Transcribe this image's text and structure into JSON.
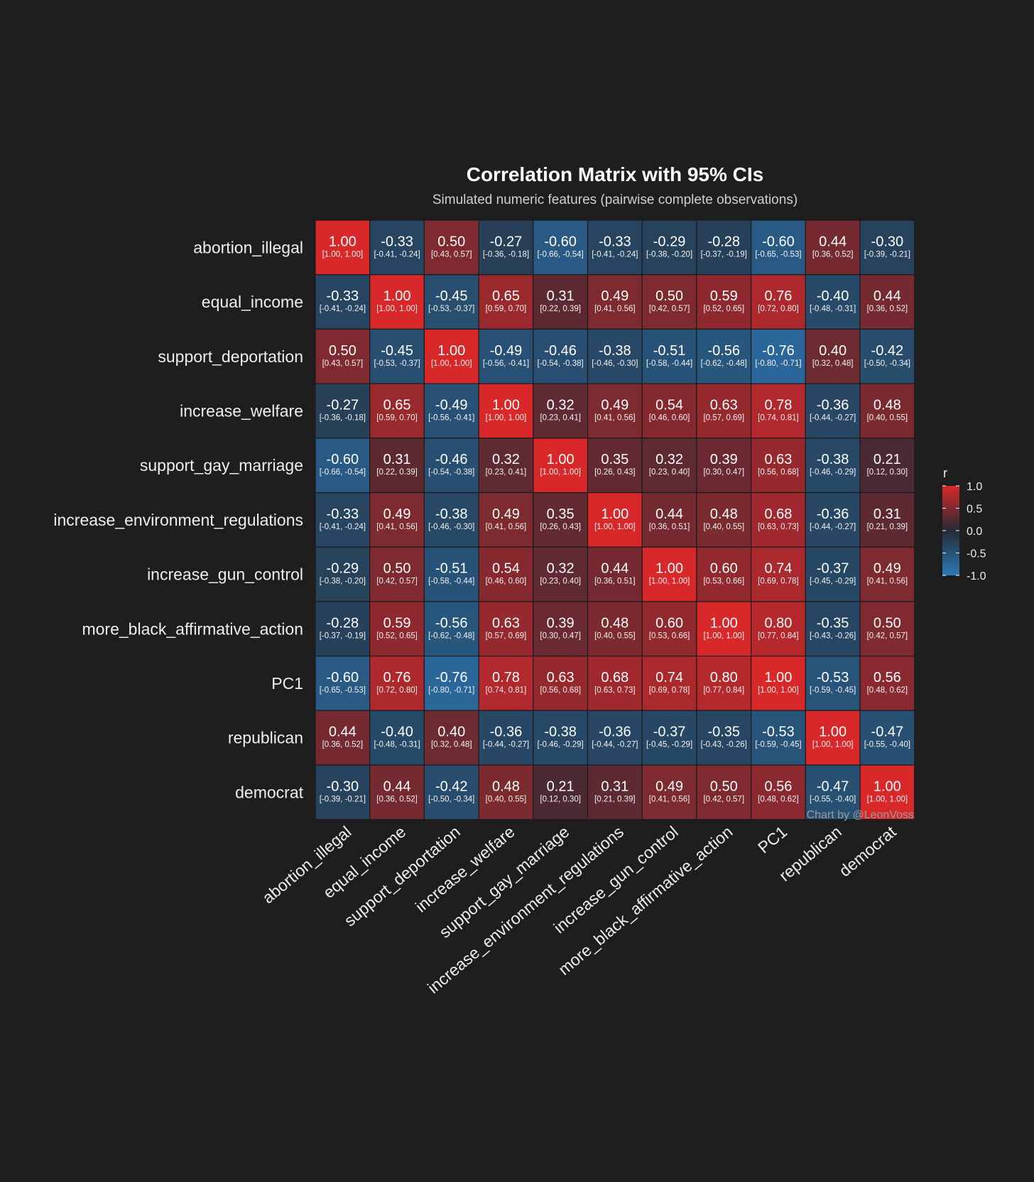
{
  "chart_data": {
    "type": "heatmap",
    "title": "Correlation Matrix with 95% CIs",
    "subtitle": "Simulated numeric features (pairwise complete observations)",
    "caption": "Chart by @LeonVoss",
    "legend_title": "r",
    "legend_ticks": [
      "1.0",
      "0.5",
      "0.0",
      "-0.5",
      "-1.0"
    ],
    "legend_tick_values": [
      1.0,
      0.5,
      0.0,
      -0.5,
      -1.0
    ],
    "color_scale": {
      "low": "#2b79b8",
      "mid": "#252b35",
      "high": "#d9282a",
      "limits": [
        -1,
        1
      ]
    },
    "variables": [
      "abortion_illegal",
      "equal_income",
      "support_deportation",
      "increase_welfare",
      "support_gay_marriage",
      "increase_environment_regulations",
      "increase_gun_control",
      "more_black_affirmative_action",
      "PC1",
      "republican",
      "democrat"
    ],
    "r_labels": [
      [
        "1.00",
        "-0.33",
        "0.50",
        "-0.27",
        "-0.60",
        "-0.33",
        "-0.29",
        "-0.28",
        "-0.60",
        "0.44",
        "-0.30"
      ],
      [
        "-0.33",
        "1.00",
        "-0.45",
        "0.65",
        "0.31",
        "0.49",
        "0.50",
        "0.59",
        "0.76",
        "-0.40",
        "0.44"
      ],
      [
        "0.50",
        "-0.45",
        "1.00",
        "-0.49",
        "-0.46",
        "-0.38",
        "-0.51",
        "-0.56",
        "-0.76",
        "0.40",
        "-0.42"
      ],
      [
        "-0.27",
        "0.65",
        "-0.49",
        "1.00",
        "0.32",
        "0.49",
        "0.54",
        "0.63",
        "0.78",
        "-0.36",
        "0.48"
      ],
      [
        "-0.60",
        "0.31",
        "-0.46",
        "0.32",
        "1.00",
        "0.35",
        "0.32",
        "0.39",
        "0.63",
        "-0.38",
        "0.21"
      ],
      [
        "-0.33",
        "0.49",
        "-0.38",
        "0.49",
        "0.35",
        "1.00",
        "0.44",
        "0.48",
        "0.68",
        "-0.36",
        "0.31"
      ],
      [
        "-0.29",
        "0.50",
        "-0.51",
        "0.54",
        "0.32",
        "0.44",
        "1.00",
        "0.60",
        "0.74",
        "-0.37",
        "0.49"
      ],
      [
        "-0.28",
        "0.59",
        "-0.56",
        "0.63",
        "0.39",
        "0.48",
        "0.60",
        "1.00",
        "0.80",
        "-0.35",
        "0.50"
      ],
      [
        "-0.60",
        "0.76",
        "-0.76",
        "0.78",
        "0.63",
        "0.68",
        "0.74",
        "0.80",
        "1.00",
        "-0.53",
        "0.56"
      ],
      [
        "0.44",
        "-0.40",
        "0.40",
        "-0.36",
        "-0.38",
        "-0.36",
        "-0.37",
        "-0.35",
        "-0.53",
        "1.00",
        "-0.47"
      ],
      [
        "-0.30",
        "0.44",
        "-0.42",
        "0.48",
        "0.21",
        "0.31",
        "0.49",
        "0.50",
        "0.56",
        "-0.47",
        "1.00"
      ]
    ],
    "ci_labels": [
      [
        "[1.00, 1.00]",
        "[-0.41, -0.24]",
        "[0.43, 0.57]",
        "[-0.36, -0.18]",
        "[-0.66, -0.54]",
        "[-0.41, -0.24]",
        "[-0.38, -0.20]",
        "[-0.37, -0.19]",
        "[-0.65, -0.53]",
        "[0.36, 0.52]",
        "[-0.39, -0.21]"
      ],
      [
        "[-0.41, -0.24]",
        "[1.00, 1.00]",
        "[-0.53, -0.37]",
        "[0.59, 0.70]",
        "[0.22, 0.39]",
        "[0.41, 0.56]",
        "[0.42, 0.57]",
        "[0.52, 0.65]",
        "[0.72, 0.80]",
        "[-0.48, -0.31]",
        "[0.36, 0.52]"
      ],
      [
        "[0.43, 0.57]",
        "[-0.53, -0.37]",
        "[1.00, 1.00]",
        "[-0.56, -0.41]",
        "[-0.54, -0.38]",
        "[-0.46, -0.30]",
        "[-0.58, -0.44]",
        "[-0.62, -0.48]",
        "[-0.80, -0.71]",
        "[0.32, 0.48]",
        "[-0.50, -0.34]"
      ],
      [
        "[-0.36, -0.18]",
        "[0.59, 0.70]",
        "[-0.56, -0.41]",
        "[1.00, 1.00]",
        "[0.23, 0.41]",
        "[0.41, 0.56]",
        "[0.46, 0.60]",
        "[0.57, 0.69]",
        "[0.74, 0.81]",
        "[-0.44, -0.27]",
        "[0.40, 0.55]"
      ],
      [
        "[-0.66, -0.54]",
        "[0.22, 0.39]",
        "[-0.54, -0.38]",
        "[0.23, 0.41]",
        "[1.00, 1.00]",
        "[0.26, 0.43]",
        "[0.23, 0.40]",
        "[0.30, 0.47]",
        "[0.56, 0.68]",
        "[-0.46, -0.29]",
        "[0.12, 0.30]"
      ],
      [
        "[-0.41, -0.24]",
        "[0.41, 0.56]",
        "[-0.46, -0.30]",
        "[0.41, 0.56]",
        "[0.26, 0.43]",
        "[1.00, 1.00]",
        "[0.36, 0.51]",
        "[0.40, 0.55]",
        "[0.63, 0.73]",
        "[-0.44, -0.27]",
        "[0.21, 0.39]"
      ],
      [
        "[-0.38, -0.20]",
        "[0.42, 0.57]",
        "[-0.58, -0.44]",
        "[0.46, 0.60]",
        "[0.23, 0.40]",
        "[0.36, 0.51]",
        "[1.00, 1.00]",
        "[0.53, 0.66]",
        "[0.69, 0.78]",
        "[-0.45, -0.29]",
        "[0.41, 0.56]"
      ],
      [
        "[-0.37, -0.19]",
        "[0.52, 0.65]",
        "[-0.62, -0.48]",
        "[0.57, 0.69]",
        "[0.30, 0.47]",
        "[0.40, 0.55]",
        "[0.53, 0.66]",
        "[1.00, 1.00]",
        "[0.77, 0.84]",
        "[-0.43, -0.26]",
        "[0.42, 0.57]"
      ],
      [
        "[-0.65, -0.53]",
        "[0.72, 0.80]",
        "[-0.80, -0.71]",
        "[0.74, 0.81]",
        "[0.56, 0.68]",
        "[0.63, 0.73]",
        "[0.69, 0.78]",
        "[0.77, 0.84]",
        "[1.00, 1.00]",
        "[-0.59, -0.45]",
        "[0.48, 0.62]"
      ],
      [
        "[0.36, 0.52]",
        "[-0.48, -0.31]",
        "[0.32, 0.48]",
        "[-0.44, -0.27]",
        "[-0.46, -0.29]",
        "[-0.44, -0.27]",
        "[-0.45, -0.29]",
        "[-0.43, -0.26]",
        "[-0.59, -0.45]",
        "[1.00, 1.00]",
        "[-0.55, -0.40]"
      ],
      [
        "[-0.39, -0.21]",
        "[0.36, 0.52]",
        "[-0.50, -0.34]",
        "[0.40, 0.55]",
        "[0.12, 0.30]",
        "[0.21, 0.39]",
        "[0.41, 0.56]",
        "[0.42, 0.57]",
        "[0.48, 0.62]",
        "[-0.55, -0.40]",
        "[1.00, 1.00]"
      ]
    ]
  }
}
